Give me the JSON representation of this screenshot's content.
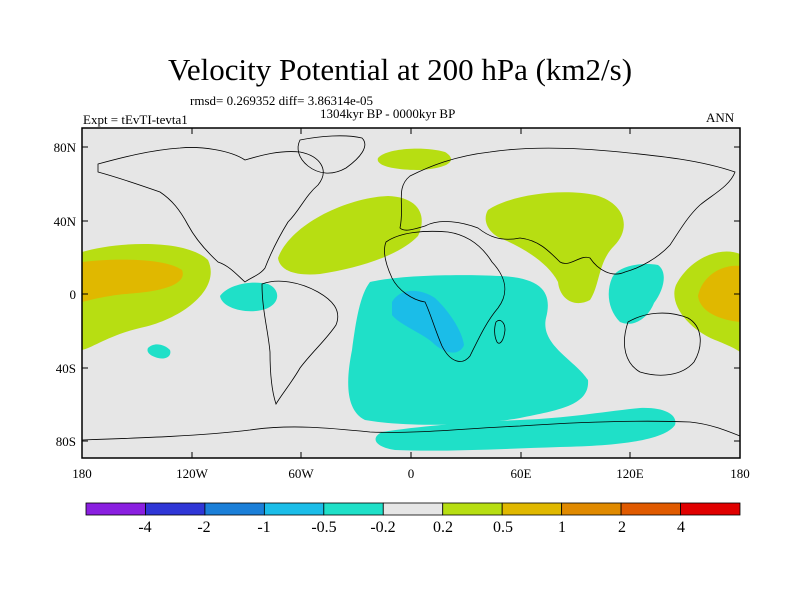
{
  "title": "Velocity Potential at 200 hPa (km2/s)",
  "stats": "rmsd= 0.269352 diff= 3.86314e-05",
  "period": "1304kyr BP - 0000kyr BP",
  "experiment": "Expt = tEvTI-tevta1",
  "season": "ANN",
  "lat_ticks": [
    "80N",
    "40N",
    "0",
    "40S",
    "80S"
  ],
  "lon_ticks": [
    "180",
    "120W",
    "60W",
    "0",
    "60E",
    "120E",
    "180"
  ],
  "colorbar": {
    "colors": [
      "#8a1fe0",
      "#2f36d6",
      "#1b7fd8",
      "#1bbde8",
      "#1fe0c8",
      "#e6e6e6",
      "#b7de12",
      "#e0b800",
      "#e08a00",
      "#e05a00",
      "#e00000"
    ],
    "labels": [
      "-4",
      "-2",
      "-1",
      "-0.5",
      "-0.2",
      "0.2",
      "0.5",
      "1",
      "2",
      "4"
    ]
  },
  "colors": {
    "background": "#e6e6e6",
    "positive_02": "#b7de12",
    "positive_05": "#e0b800",
    "negative_02": "#1fe0c8",
    "negative_05": "#1bbde8",
    "coast": "#000000"
  }
}
